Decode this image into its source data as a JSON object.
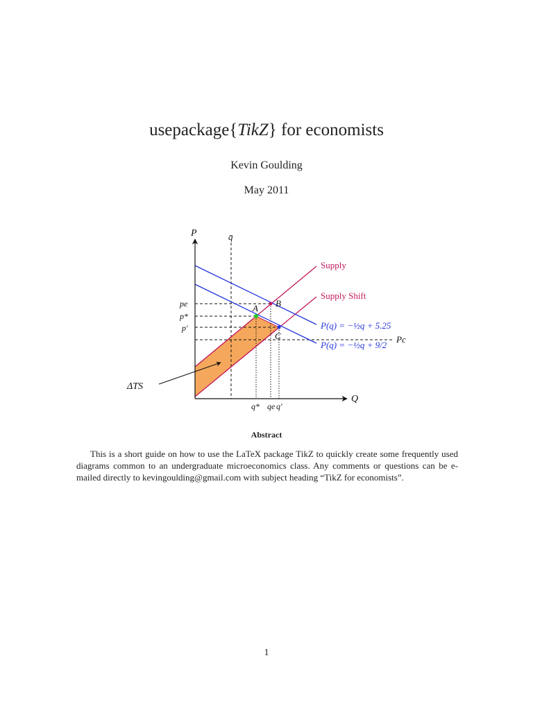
{
  "document": {
    "title_prefix": "usepackage{",
    "title_italic": "TikZ",
    "title_suffix": "} for economists",
    "author": "Kevin Goulding",
    "date": "May 2011",
    "abstract_heading": "Abstract",
    "abstract_text": "This is a short guide on how to use the LaTeX package TikZ to quickly create some frequently used diagrams common to an undergraduate microeconomics class. Any comments or questions can be e-mailed directly to kevingoulding@gmail.com with subject heading “TikZ for economists”.",
    "page_number": "1"
  },
  "figure": {
    "axis_y_label": "P",
    "axis_x_label": "Q",
    "qbar_label": "q̄",
    "supply_label": "Supply",
    "supply_shift_label": "Supply Shift",
    "demand1_label": "P(q) = −½q + 5.25",
    "demand2_label": "P(q) = −½q + 9/2",
    "pc_label": "Pc",
    "pe_label": "pe",
    "pstar_label": "p*",
    "pprime_label": "p′",
    "qstar_label": "q*",
    "qe_label": "qe",
    "qprime_label": "q′",
    "point_a_label": "A",
    "point_b_label": "B",
    "point_c_label": "C",
    "delta_ts_label": "ΔTS",
    "colors": {
      "supply": "#c2185b",
      "demand": "#2233dd",
      "surplus_fill": "#f5a85c",
      "point_a": "#22cc22",
      "axes": "#111111"
    }
  }
}
